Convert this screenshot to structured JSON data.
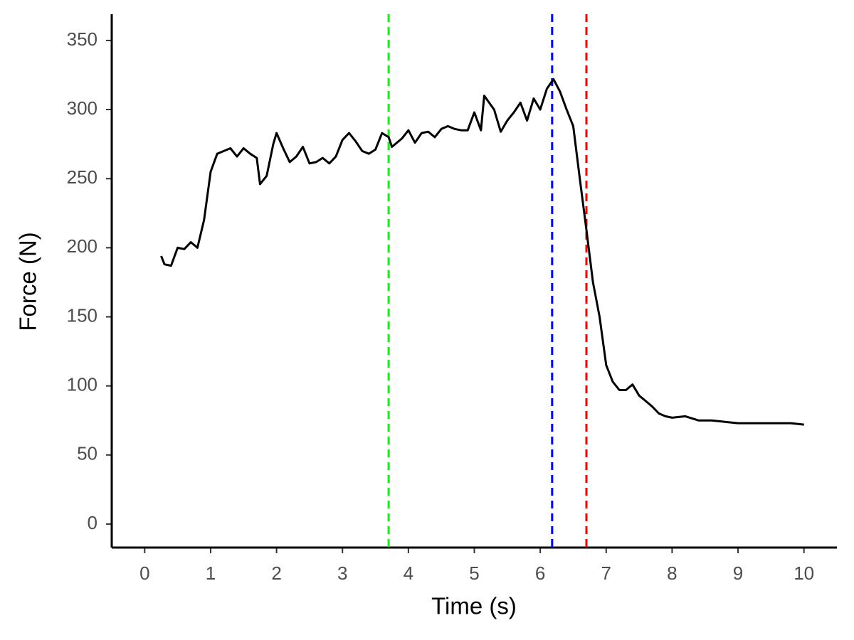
{
  "chart_data": {
    "type": "line",
    "x_label": "Time (s)",
    "y_label": "Force (N)",
    "x": [
      0.25,
      0.3,
      0.4,
      0.5,
      0.6,
      0.7,
      0.8,
      0.9,
      1.0,
      1.1,
      1.2,
      1.3,
      1.4,
      1.5,
      1.6,
      1.7,
      1.75,
      1.85,
      1.95,
      2.0,
      2.1,
      2.2,
      2.3,
      2.4,
      2.5,
      2.6,
      2.7,
      2.8,
      2.9,
      3.0,
      3.1,
      3.2,
      3.3,
      3.4,
      3.5,
      3.6,
      3.7,
      3.75,
      3.9,
      4.0,
      4.1,
      4.2,
      4.3,
      4.4,
      4.5,
      4.6,
      4.7,
      4.8,
      4.9,
      5.0,
      5.1,
      5.15,
      5.3,
      5.4,
      5.5,
      5.6,
      5.7,
      5.8,
      5.9,
      6.0,
      6.1,
      6.2,
      6.3,
      6.4,
      6.5,
      6.6,
      6.7,
      6.8,
      6.9,
      7.0,
      7.1,
      7.2,
      7.3,
      7.4,
      7.5,
      7.6,
      7.7,
      7.8,
      7.9,
      8.0,
      8.2,
      8.4,
      8.6,
      8.8,
      9.0,
      9.2,
      9.4,
      9.6,
      9.8,
      10.0
    ],
    "series": [
      {
        "color": "#000000",
        "values": [
          194,
          188,
          187,
          200,
          199,
          204,
          200,
          220,
          255,
          268,
          270,
          272,
          266,
          272,
          268,
          265,
          246,
          252,
          275,
          283,
          272,
          262,
          266,
          273,
          261,
          262,
          265,
          261,
          266,
          278,
          283,
          277,
          270,
          268,
          271,
          283,
          280,
          273,
          279,
          285,
          276,
          283,
          284,
          280,
          286,
          288,
          286,
          285,
          285,
          298,
          285,
          310,
          300,
          284,
          292,
          298,
          305,
          292,
          308,
          300,
          315,
          322,
          313,
          300,
          288,
          250,
          213,
          175,
          150,
          115,
          103,
          97,
          97,
          101,
          93,
          89,
          85,
          80,
          78,
          77,
          78,
          75,
          75,
          74,
          73,
          73,
          73,
          73,
          73,
          72
        ]
      }
    ],
    "vlines": [
      {
        "x": 3.7,
        "color": "#00ff00"
      },
      {
        "x": 6.18,
        "color": "#0000ff"
      },
      {
        "x": 6.7,
        "color": "#ff0000"
      }
    ],
    "xlim": [
      -0.5,
      10.5
    ],
    "ylim": [
      -17,
      369
    ],
    "xticks": [
      0,
      1,
      2,
      3,
      4,
      5,
      6,
      7,
      8,
      9,
      10
    ],
    "yticks": [
      0,
      50,
      100,
      150,
      200,
      250,
      300,
      350
    ],
    "grid": false
  }
}
